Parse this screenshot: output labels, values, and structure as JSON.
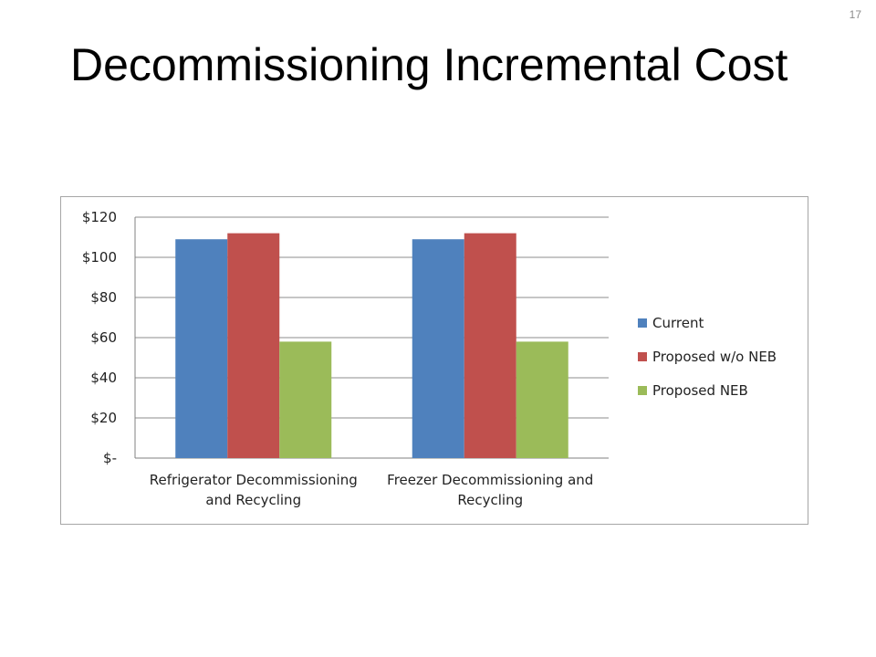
{
  "slide": {
    "number": "17",
    "title": "Decommissioning Incremental Cost"
  },
  "chart_data": {
    "type": "bar",
    "title": "",
    "xlabel": "",
    "ylabel": "",
    "categories": [
      [
        "Refrigerator Decommissioning",
        "and Recycling"
      ],
      [
        "Freezer Decommissioning and",
        "Recycling"
      ]
    ],
    "series": [
      {
        "name": "Current",
        "color": "#4f81bd",
        "values": [
          109,
          109
        ]
      },
      {
        "name": "Proposed w/o NEB",
        "color": "#c0504d",
        "values": [
          112,
          112
        ]
      },
      {
        "name": "Proposed NEB",
        "color": "#9bbb59",
        "values": [
          58,
          58
        ]
      }
    ],
    "ylim": [
      0,
      120
    ],
    "yticks": [
      0,
      20,
      40,
      60,
      80,
      100,
      120
    ],
    "ytick_labels": [
      "$-",
      "$20",
      "$40",
      "$60",
      "$80",
      "$100",
      "$120"
    ],
    "grid": true,
    "legend_position": "right"
  }
}
